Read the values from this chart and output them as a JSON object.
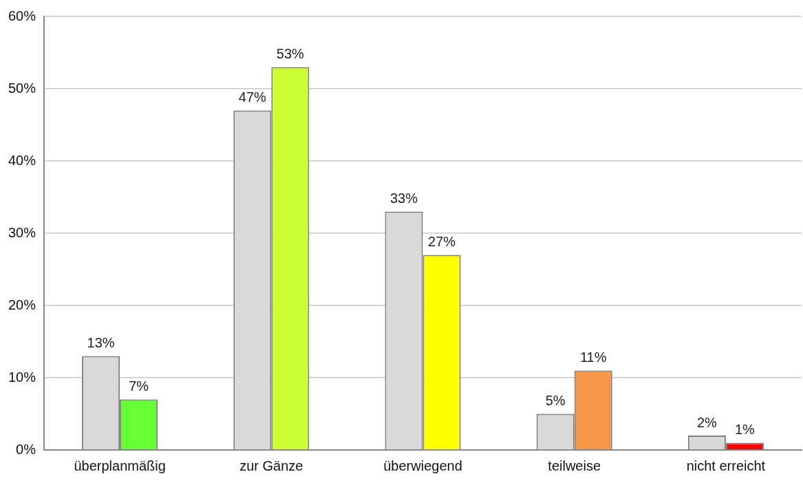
{
  "chart_data": {
    "type": "bar",
    "categories": [
      "überplanmäßig",
      "zur Gänze",
      "überwiegend",
      "teilweise",
      "nicht erreicht"
    ],
    "series": [
      {
        "color": "#d9d9d9",
        "values": [
          13,
          47,
          33,
          5,
          2
        ],
        "value_labels": [
          "13%",
          "47%",
          "33%",
          "5%",
          "2%"
        ]
      },
      {
        "colors": [
          "#66ff33",
          "#ccff33",
          "#ffff00",
          "#f79646",
          "#ff0000"
        ],
        "values": [
          7,
          53,
          27,
          11,
          1
        ],
        "value_labels": [
          "7%",
          "53%",
          "27%",
          "11%",
          "1%"
        ]
      }
    ],
    "ylim": [
      0,
      60
    ],
    "yticks": [
      {
        "value": 0,
        "label": "0%"
      },
      {
        "value": 10,
        "label": "10%"
      },
      {
        "value": 20,
        "label": "20%"
      },
      {
        "value": 30,
        "label": "30%"
      },
      {
        "value": 40,
        "label": "40%"
      },
      {
        "value": 50,
        "label": "50%"
      },
      {
        "value": 60,
        "label": "60%"
      }
    ],
    "grid": "y",
    "legend": false
  }
}
